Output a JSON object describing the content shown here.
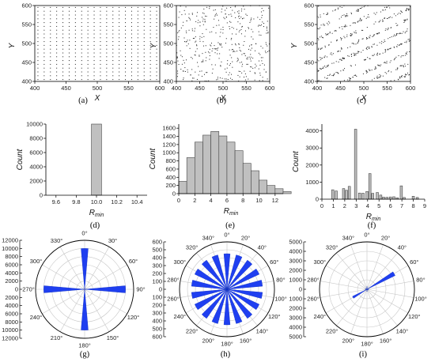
{
  "chart_data": [
    {
      "panel": "a",
      "caption": "(a)",
      "type": "scatter",
      "xlabel": "X",
      "ylabel": "Y",
      "xlim": [
        400,
        600
      ],
      "ylim": [
        400,
        600
      ],
      "xticks": [
        "400",
        "450",
        "500",
        "550",
        "600"
      ],
      "yticks": [
        "400",
        "450",
        "500",
        "550",
        "600"
      ],
      "description_pattern": "regular lattice",
      "spacing": [
        10,
        10
      ]
    },
    {
      "panel": "b",
      "caption": "(b)",
      "type": "scatter",
      "xlabel": "X",
      "ylabel": "Y",
      "xlim": [
        400,
        600
      ],
      "ylim": [
        400,
        600
      ],
      "xticks": [
        "400",
        "450",
        "500",
        "550",
        "600"
      ],
      "yticks": [
        "400",
        "450",
        "500",
        "550",
        "600"
      ],
      "description_pattern": "random"
    },
    {
      "panel": "c",
      "caption": "(c)",
      "type": "scatter",
      "xlabel": "X",
      "ylabel": "Y",
      "xlim": [
        400,
        600
      ],
      "ylim": [
        400,
        600
      ],
      "xticks": [
        "400",
        "450",
        "500",
        "550",
        "600"
      ],
      "yticks": [
        "400",
        "450",
        "500",
        "550",
        "600"
      ],
      "description_pattern": "diagonal streaks"
    },
    {
      "panel": "d",
      "caption": "(d)",
      "type": "bar",
      "xlabel": "R_min",
      "ylabel": "Count",
      "xlim": [
        9.5,
        10.5
      ],
      "ylim": [
        0,
        10000
      ],
      "xticks": [
        "9.6",
        "9.8",
        "10.0",
        "10.2",
        "10.4"
      ],
      "yticks": [
        "0",
        "2000",
        "4000",
        "6000",
        "8000",
        "10000"
      ],
      "bins": [
        {
          "x0": 9.95,
          "x1": 10.05,
          "count": 10000
        }
      ]
    },
    {
      "panel": "e",
      "caption": "(e)",
      "type": "bar",
      "xlabel": "R_min",
      "ylabel": "Count",
      "xlim": [
        0,
        13
      ],
      "ylim": [
        0,
        1700
      ],
      "xticks": [
        "0",
        "2",
        "4",
        "6",
        "8",
        "10",
        "12"
      ],
      "yticks": [
        "0",
        "200",
        "400",
        "600",
        "800",
        "1000",
        "1200",
        "1400",
        "1600"
      ],
      "bin_width": 1,
      "bin_start": 0,
      "counts": [
        300,
        880,
        1260,
        1430,
        1520,
        1410,
        1260,
        1050,
        740,
        560,
        330,
        200,
        120,
        50
      ]
    },
    {
      "panel": "f",
      "caption": "(f)",
      "type": "bar",
      "xlabel": "R_min",
      "ylabel": "Count",
      "xlim": [
        0,
        9
      ],
      "ylim": [
        0,
        4400
      ],
      "xticks": [
        "0",
        "1",
        "2",
        "3",
        "4",
        "5",
        "6",
        "7",
        "8",
        "9"
      ],
      "yticks": [
        "0",
        "1000",
        "2000",
        "3000",
        "4000"
      ],
      "bins": [
        [
          0.95,
          550
        ],
        [
          1.25,
          480
        ],
        [
          1.9,
          620
        ],
        [
          2.15,
          520
        ],
        [
          2.4,
          750
        ],
        [
          2.95,
          4100
        ],
        [
          3.3,
          360
        ],
        [
          3.6,
          350
        ],
        [
          3.95,
          450
        ],
        [
          4.2,
          1500
        ],
        [
          4.45,
          340
        ],
        [
          4.85,
          390
        ],
        [
          5.15,
          240
        ],
        [
          5.4,
          120
        ],
        [
          5.7,
          110
        ],
        [
          6.0,
          130
        ],
        [
          6.3,
          140
        ],
        [
          6.6,
          80
        ],
        [
          6.95,
          780
        ],
        [
          7.2,
          100
        ],
        [
          8.0,
          170
        ],
        [
          8.35,
          100
        ]
      ],
      "bar_width": 0.2
    },
    {
      "panel": "g",
      "caption": "(g)",
      "type": "polar-bar",
      "rlim": [
        0,
        12000
      ],
      "rticks": [
        "0",
        "2000",
        "4000",
        "6000",
        "8000",
        "10000",
        "12000"
      ],
      "angle_labels": [
        "0°",
        "30°",
        "60°",
        "90°",
        "120°",
        "150°",
        "180°",
        "210°",
        "240°",
        "270°",
        "300°",
        "330°"
      ],
      "angle_step": 30,
      "wedges": [
        {
          "angle": 0,
          "width": 10,
          "value": 10000
        },
        {
          "angle": 90,
          "width": 10,
          "value": 10000
        },
        {
          "angle": 180,
          "width": 10,
          "value": 10000
        },
        {
          "angle": 270,
          "width": 10,
          "value": 10000
        }
      ]
    },
    {
      "panel": "h",
      "caption": "(h)",
      "type": "polar-bar",
      "rlim": [
        0,
        600
      ],
      "rticks": [
        "0",
        "100",
        "200",
        "300",
        "400",
        "500",
        "600"
      ],
      "angle_labels": [
        "0°",
        "20°",
        "40°",
        "60°",
        "80°",
        "100°",
        "120°",
        "140°",
        "160°",
        "180°",
        "200°",
        "220°",
        "240°",
        "260°",
        "280°",
        "300°",
        "320°",
        "340°"
      ],
      "angle_step": 20,
      "wedge_width": 10,
      "wedge_centers": [
        0,
        20,
        40,
        60,
        80,
        100,
        120,
        140,
        160,
        180,
        200,
        220,
        240,
        260,
        280,
        300,
        320,
        340
      ],
      "wedge_value": 450
    },
    {
      "panel": "i",
      "caption": "(i)",
      "type": "polar-bar",
      "rlim": [
        0,
        5000
      ],
      "rticks": [
        "0",
        "1000",
        "2000",
        "3000",
        "4000",
        "5000"
      ],
      "angle_labels": [
        "0°",
        "20°",
        "40°",
        "60°",
        "80°",
        "100°",
        "120°",
        "140°",
        "160°",
        "180°",
        "200°",
        "220°",
        "240°",
        "260°",
        "280°",
        "300°",
        "320°",
        "340°"
      ],
      "angle_step": 20,
      "wedges": [
        {
          "angle": 60,
          "width": 8,
          "value": 3300
        },
        {
          "angle": 240,
          "width": 8,
          "value": 1700
        },
        {
          "angle": 0,
          "width": 4,
          "value": 300
        },
        {
          "angle": 180,
          "width": 4,
          "value": 250
        },
        {
          "angle": 90,
          "width": 4,
          "value": 200
        },
        {
          "angle": 270,
          "width": 4,
          "value": 200
        },
        {
          "angle": 120,
          "width": 4,
          "value": 150
        },
        {
          "angle": 300,
          "width": 4,
          "value": 150
        }
      ]
    }
  ],
  "style": {
    "bar_fill": "#c0c0c0",
    "polar_fill": "#1f3ff0",
    "point_color": "#222222"
  }
}
